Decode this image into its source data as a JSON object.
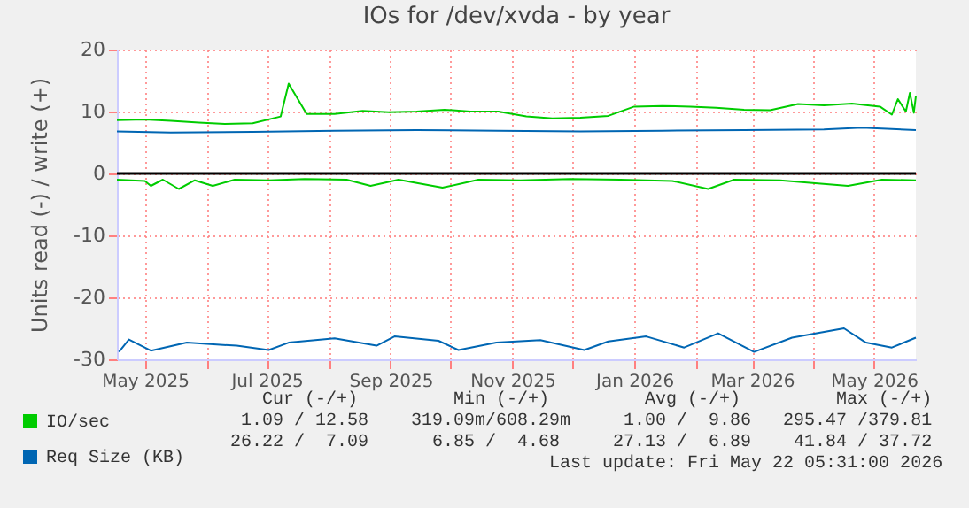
{
  "chart_data": {
    "type": "line",
    "title": "IOs for /dev/xvda - by year",
    "ylabel": "Units read (-) / write (+)",
    "xlim": [
      "2025-04-17",
      "2026-05-22"
    ],
    "ylim": [
      -30,
      20
    ],
    "yticks": [
      -30,
      -20,
      -10,
      0,
      10,
      20
    ],
    "xticks": [
      {
        "value": "2025-05-01",
        "label": "May 2025"
      },
      {
        "value": "2025-06-01",
        "label": null
      },
      {
        "value": "2025-07-01",
        "label": "Jul 2025"
      },
      {
        "value": "2025-08-01",
        "label": null
      },
      {
        "value": "2025-09-01",
        "label": "Sep 2025"
      },
      {
        "value": "2025-10-01",
        "label": null
      },
      {
        "value": "2025-11-01",
        "label": "Nov 2025"
      },
      {
        "value": "2025-12-01",
        "label": null
      },
      {
        "value": "2026-01-01",
        "label": "Jan 2026"
      },
      {
        "value": "2026-02-01",
        "label": null
      },
      {
        "value": "2026-03-01",
        "label": "Mar 2026"
      },
      {
        "value": "2026-04-01",
        "label": null
      },
      {
        "value": "2026-05-01",
        "label": "May 2026"
      }
    ],
    "grid": true,
    "legend": "bottom left",
    "line_style": "solid",
    "marker": "none",
    "ref_lines": [
      {
        "axis": "y",
        "value": 0,
        "label": null,
        "color": "#000000"
      }
    ],
    "series": [
      {
        "name": "IO/sec",
        "color": "#00cc00",
        "x": [
          "2025-04-17",
          "2025-05-01",
          "2025-05-14",
          "2025-05-28",
          "2025-06-10",
          "2025-06-24",
          "2025-07-08",
          "2025-07-12",
          "2025-07-21",
          "2025-08-04",
          "2025-08-18",
          "2025-08-31",
          "2025-09-14",
          "2025-09-28",
          "2025-10-11",
          "2025-10-25",
          "2025-11-08",
          "2025-11-21",
          "2025-12-05",
          "2025-12-19",
          "2026-01-01",
          "2026-01-15",
          "2026-01-29",
          "2026-02-11",
          "2026-02-25",
          "2026-03-10",
          "2026-03-24",
          "2026-04-06",
          "2026-04-20",
          "2026-05-04",
          "2026-05-10",
          "2026-05-13",
          "2026-05-17",
          "2026-05-19",
          "2026-05-21",
          "2026-05-22"
        ],
        "values": [
          8.6,
          8.7,
          8.5,
          8.2,
          8.0,
          8.1,
          9.2,
          14.5,
          9.6,
          9.6,
          10.1,
          9.9,
          10.0,
          10.3,
          10.0,
          10.0,
          9.2,
          8.9,
          9.0,
          9.3,
          10.8,
          10.9,
          10.8,
          10.6,
          10.3,
          10.2,
          11.2,
          11.0,
          11.3,
          10.8,
          9.5,
          12.0,
          10.0,
          13.0,
          9.8,
          12.5
        ]
      },
      {
        "color": "#00cc00",
        "x": [
          "2025-04-17",
          "2025-05-01",
          "2025-05-04",
          "2025-05-10",
          "2025-05-18",
          "2025-05-26",
          "2025-06-04",
          "2025-06-15",
          "2025-07-02",
          "2025-07-20",
          "2025-08-10",
          "2025-08-22",
          "2025-09-05",
          "2025-09-27",
          "2025-10-15",
          "2025-11-05",
          "2025-11-30",
          "2025-12-25",
          "2026-01-20",
          "2026-02-07",
          "2026-02-20",
          "2026-03-15",
          "2026-04-18",
          "2026-05-05",
          "2026-05-22"
        ],
        "values": [
          -1.0,
          -1.2,
          -2.0,
          -1.0,
          -2.5,
          -1.1,
          -2.0,
          -1.0,
          -1.1,
          -0.9,
          -1.0,
          -2.0,
          -1.0,
          -2.3,
          -1.0,
          -1.1,
          -0.9,
          -1.0,
          -1.2,
          -2.5,
          -1.0,
          -1.1,
          -2.0,
          -1.0,
          -1.1
        ]
      },
      {
        "name": "Req Size (KB)",
        "color": "#0066b3",
        "x": [
          "2025-04-17",
          "2025-05-14",
          "2025-06-24",
          "2025-08-04",
          "2025-09-14",
          "2025-10-25",
          "2025-12-05",
          "2026-01-15",
          "2026-02-25",
          "2026-04-06",
          "2026-04-25",
          "2026-05-22"
        ],
        "values": [
          6.8,
          6.6,
          6.7,
          6.9,
          7.0,
          6.9,
          6.8,
          6.9,
          7.0,
          7.1,
          7.4,
          7.0
        ]
      },
      {
        "color": "#0066b3",
        "x": [
          "2025-04-18",
          "2025-04-23",
          "2025-05-04",
          "2025-05-22",
          "2025-06-16",
          "2025-07-02",
          "2025-07-12",
          "2025-08-04",
          "2025-08-25",
          "2025-09-03",
          "2025-09-25",
          "2025-10-05",
          "2025-10-24",
          "2025-11-15",
          "2025-12-07",
          "2025-12-19",
          "2026-01-07",
          "2026-01-26",
          "2026-02-12",
          "2026-03-02",
          "2026-03-21",
          "2026-04-16",
          "2026-04-27",
          "2026-05-10",
          "2026-05-22"
        ],
        "values": [
          -28.8,
          -26.8,
          -28.6,
          -27.3,
          -27.8,
          -28.5,
          -27.3,
          -26.6,
          -27.8,
          -26.3,
          -27.0,
          -28.5,
          -27.3,
          -26.9,
          -28.5,
          -27.1,
          -26.3,
          -28.1,
          -25.8,
          -28.8,
          -26.5,
          -25.0,
          -27.3,
          -28.1,
          -26.5
        ]
      }
    ],
    "annotations": [
      "   Cur (-/+)         Min (-/+)         Avg (-/+)         Max (-/+)",
      " 1.09 / 12.58    319.09m/608.29m     1.00 /  9.86   295.47 /379.81",
      "26.22 /  7.09      6.85 /  4.68     27.13 /  6.89    41.84 / 37.72",
      "                              Last update: Fri May 22 05:31:00 2026"
    ]
  }
}
